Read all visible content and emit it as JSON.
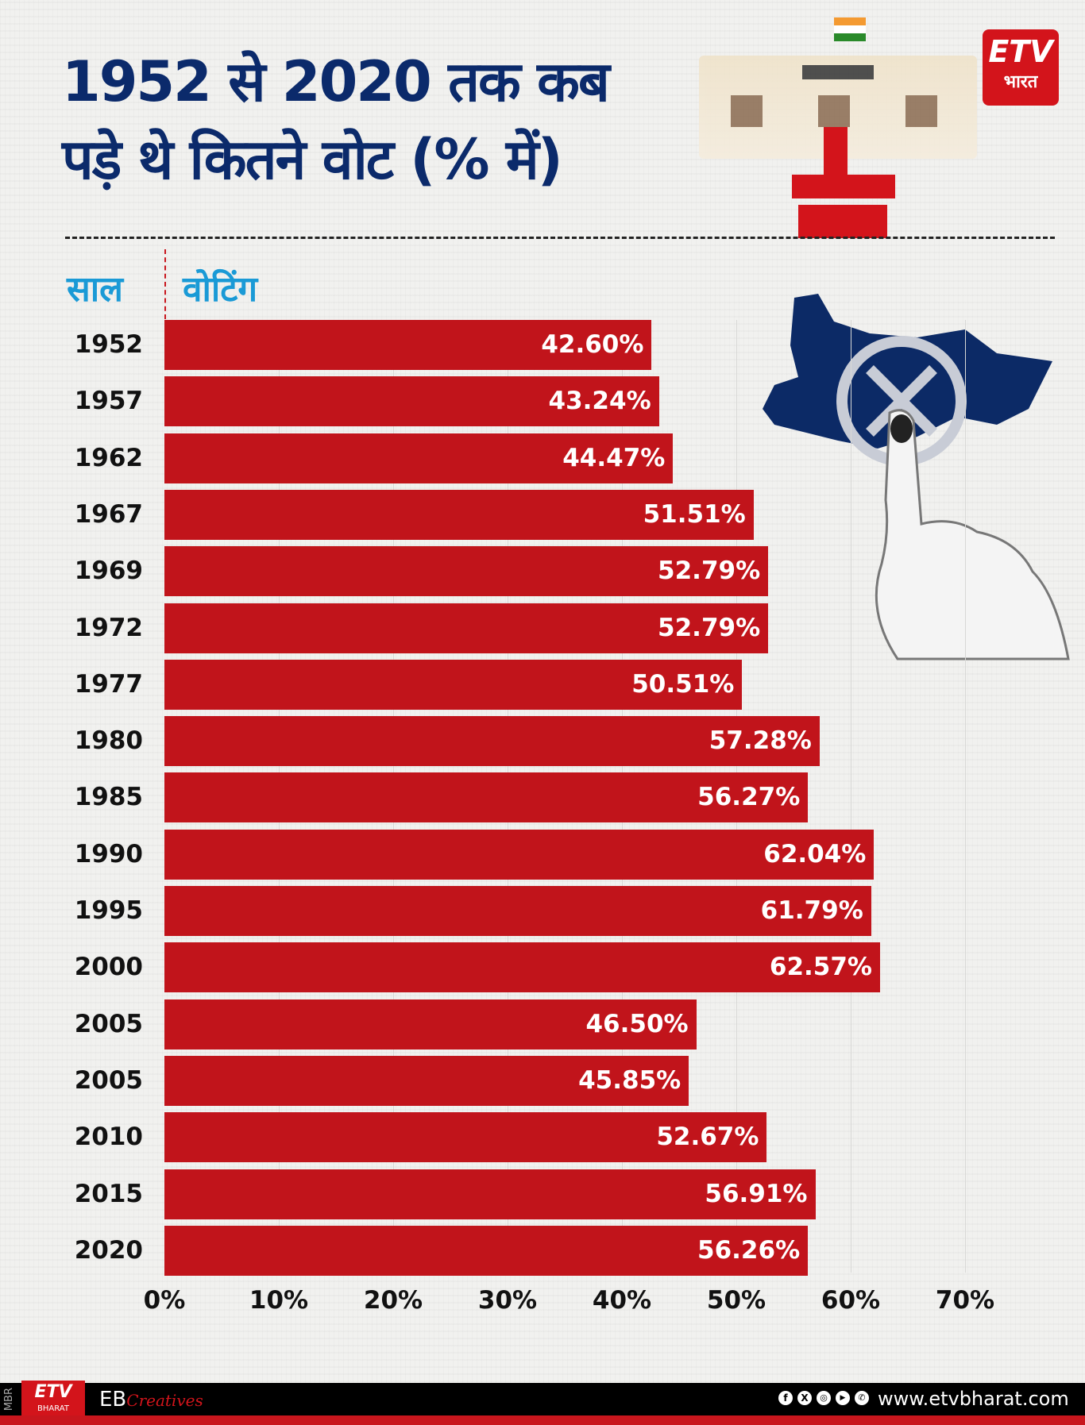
{
  "header": {
    "title_line1": "1952 से 2020 तक कब",
    "title_line2": "पड़े थे कितने वोट (% में)",
    "col_year": "साल",
    "col_voting": "वोटिंग"
  },
  "logo": {
    "brand": "ETV",
    "sub": "भारत"
  },
  "chart_data": {
    "type": "bar",
    "orientation": "horizontal",
    "title": "1952 से 2020 तक कब पड़े थे कितने वोट (% में)",
    "categories": [
      "1952",
      "1957",
      "1962",
      "1967",
      "1969",
      "1972",
      "1977",
      "1980",
      "1985",
      "1990",
      "1995",
      "2000",
      "2005",
      "2005",
      "2010",
      "2015",
      "2020"
    ],
    "values": [
      42.6,
      43.24,
      44.47,
      51.51,
      52.79,
      52.79,
      50.51,
      57.28,
      56.27,
      62.04,
      61.79,
      62.57,
      46.5,
      45.85,
      52.67,
      56.91,
      56.26
    ],
    "labels": [
      "42.60%",
      "43.24%",
      "44.47%",
      "51.51%",
      "52.79%",
      "52.79%",
      "50.51%",
      "57.28%",
      "56.27%",
      "62.04%",
      "61.79%",
      "62.57%",
      "46.50%",
      "45.85%",
      "52.67%",
      "56.91%",
      "56.26%"
    ],
    "xlim": [
      0,
      70
    ],
    "ticks": [
      "0%",
      "10%",
      "20%",
      "30%",
      "40%",
      "50%",
      "60%",
      "70%"
    ],
    "bar_color": "#c1141b",
    "grid": true
  },
  "footer": {
    "side_text": "MBR",
    "logo_sub": "BHARAT",
    "credit_prefix": "EB",
    "credit_script": "Creatives",
    "social_icons": [
      "facebook-icon",
      "x-icon",
      "instagram-icon",
      "youtube-icon",
      "whatsapp-icon"
    ],
    "website": "www.etvbharat.com"
  }
}
